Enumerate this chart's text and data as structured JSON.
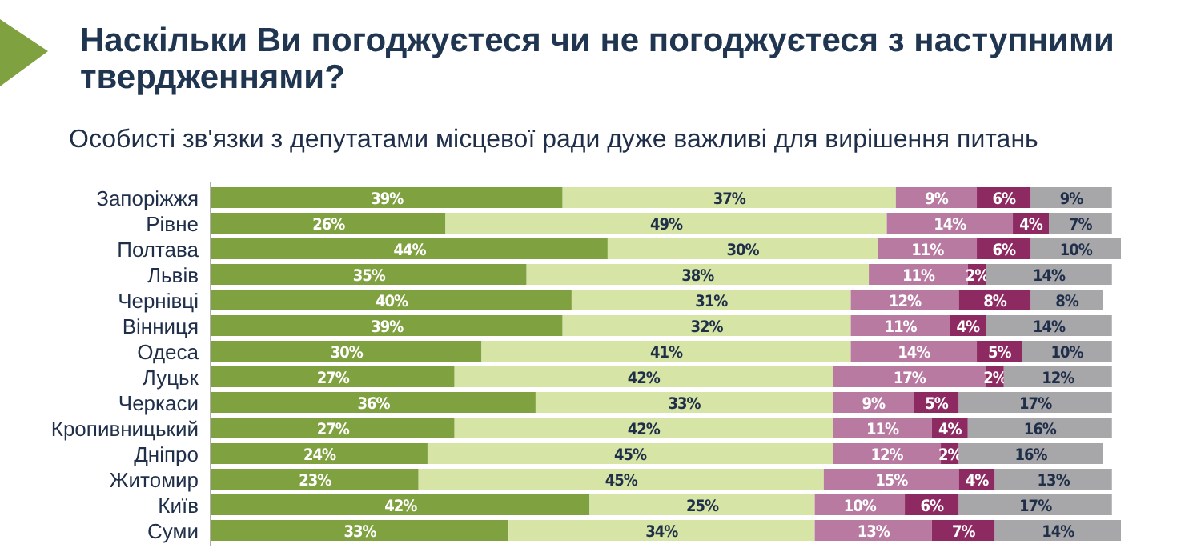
{
  "chart_data": {
    "type": "bar",
    "orientation": "horizontal",
    "stacked": true,
    "tick_labels": "y",
    "title": "Наскільки Ви погоджуєтеся чи не погоджуєтеся з наступними твердженнями?",
    "subtitle": "Особисті зв'язки з депутатами місцевої ради дуже важливі для вирішення питань",
    "xlim": [
      0,
      101
    ],
    "categories": [
      "Запоріжжя",
      "Рівне",
      "Полтава",
      "Львів",
      "Чернівці",
      "Вінниця",
      "Одеса",
      "Луцьк",
      "Черкаси",
      "Кропивницький",
      "Дніпро",
      "Житомир",
      "Київ",
      "Суми"
    ],
    "series": [
      {
        "color": "#7fa13f",
        "values": [
          39,
          26,
          44,
          35,
          40,
          39,
          30,
          27,
          36,
          27,
          24,
          23,
          42,
          33
        ],
        "value_labels": [
          "39%",
          "26%",
          "44%",
          "35%",
          "40%",
          "39%",
          "30%",
          "27%",
          "36%",
          "27%",
          "24%",
          "23%",
          "42%",
          "33%"
        ]
      },
      {
        "color": "#d6e4a6",
        "values": [
          37,
          49,
          30,
          38,
          31,
          32,
          41,
          42,
          33,
          42,
          45,
          45,
          25,
          34
        ],
        "value_labels": [
          "37%",
          "49%",
          "30%",
          "38%",
          "31%",
          "32%",
          "41%",
          "42%",
          "33%",
          "42%",
          "45%",
          "45%",
          "25%",
          "34%"
        ]
      },
      {
        "color": "#b87aa1",
        "values": [
          9,
          14,
          11,
          11,
          12,
          11,
          14,
          17,
          9,
          11,
          12,
          15,
          10,
          13
        ],
        "value_labels": [
          "9%",
          "14%",
          "11%",
          "11%",
          "12%",
          "11%",
          "14%",
          "17%",
          "9%",
          "11%",
          "12%",
          "15%",
          "10%",
          "13%"
        ]
      },
      {
        "color": "#8e2a62",
        "values": [
          6,
          4,
          6,
          2,
          8,
          4,
          5,
          2,
          5,
          4,
          2,
          4,
          6,
          7
        ],
        "value_labels": [
          "6%",
          "4%",
          "6%",
          "2%",
          "8%",
          "4%",
          "5%",
          "2%",
          "5%",
          "4%",
          "2%",
          "4%",
          "6%",
          "7%"
        ]
      },
      {
        "color": "#a7a6a9",
        "values": [
          9,
          7,
          10,
          14,
          8,
          14,
          10,
          12,
          17,
          16,
          16,
          13,
          17,
          14
        ],
        "value_labels": [
          "9%",
          "7%",
          "10%",
          "14%",
          "8%",
          "14%",
          "10%",
          "12%",
          "17%",
          "16%",
          "16%",
          "13%",
          "17%",
          "14%"
        ]
      }
    ]
  }
}
